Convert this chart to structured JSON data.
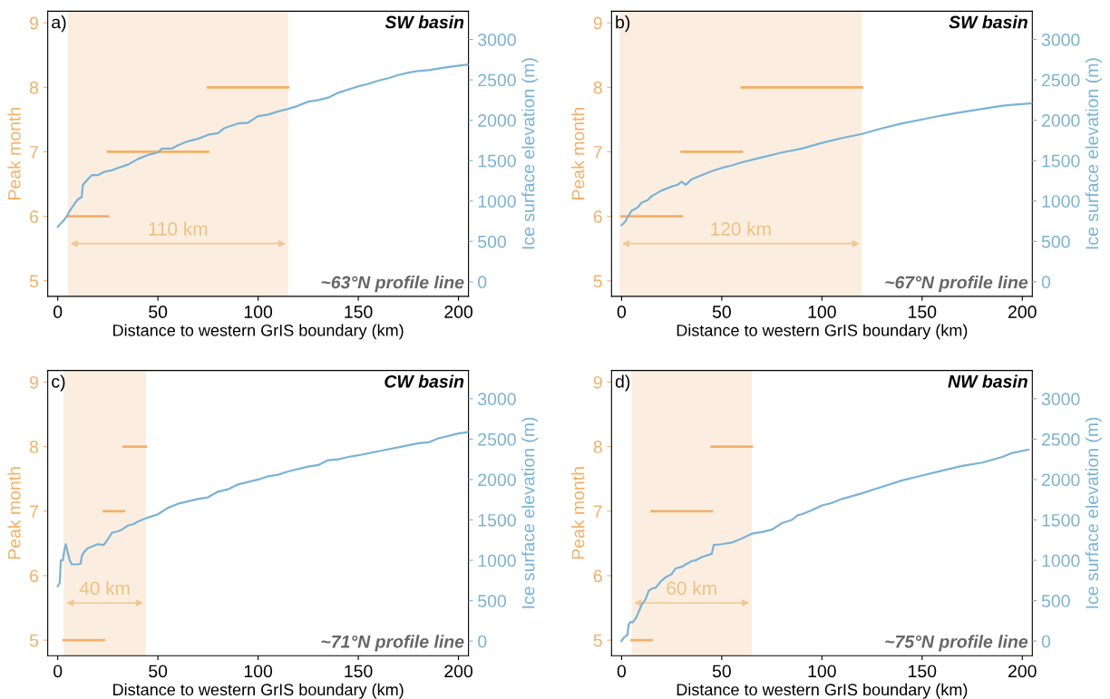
{
  "chart_data": [
    {
      "type": "line",
      "title": "SW basin",
      "xlabel": "Distance to western GrIS boundary (km)",
      "ylabel": "Peak month",
      "y2label": "Ice surface elevation (m)",
      "xlim": [
        -5,
        205
      ],
      "xticks": [
        0,
        50,
        100,
        150,
        200
      ],
      "ylim": [
        4.76,
        9.18
      ],
      "yticks": [
        5,
        6,
        7,
        8,
        9
      ],
      "y2lim": [
        -180,
        3350
      ],
      "y2ticks": [
        0,
        500,
        1000,
        1500,
        2000,
        2500,
        3000
      ],
      "grid": false,
      "legend": false,
      "bands": [
        {
          "axis": "x",
          "from": 5,
          "to": 115,
          "color": "#fbeee0"
        }
      ],
      "annotations": [
        "a)",
        "~63°N profile line",
        "110 km"
      ],
      "series": [
        {
          "color": "#f5b066",
          "x": [
            5,
            25
          ],
          "values": [
            6,
            6
          ]
        },
        {
          "color": "#f5b066",
          "x": [
            25,
            75
          ],
          "values": [
            7,
            7
          ]
        },
        {
          "color": "#f5b066",
          "x": [
            75,
            115
          ],
          "values": [
            8,
            8
          ]
        },
        {
          "color": "#7ab3d6",
          "axis": "y2",
          "x": [
            0,
            3,
            5,
            6,
            8,
            10,
            12,
            12.5,
            15,
            17,
            20,
            23,
            27,
            30,
            35,
            40,
            45,
            50,
            52,
            57,
            60,
            65,
            70,
            75,
            80,
            83,
            90,
            95,
            100,
            105,
            110,
            115,
            120,
            125,
            130,
            135,
            140,
            145,
            150,
            155,
            160,
            165,
            170,
            175,
            180,
            185,
            190,
            195,
            205
          ],
          "values": [
            680,
            760,
            830,
            880,
            950,
            1020,
            1050,
            1200,
            1270,
            1320,
            1320,
            1360,
            1380,
            1410,
            1450,
            1520,
            1570,
            1600,
            1650,
            1650,
            1690,
            1740,
            1770,
            1820,
            1840,
            1900,
            1960,
            1970,
            2050,
            2070,
            2110,
            2140,
            2180,
            2230,
            2250,
            2280,
            2340,
            2380,
            2420,
            2450,
            2490,
            2520,
            2560,
            2590,
            2610,
            2620,
            2640,
            2660,
            2690
          ]
        }
      ]
    },
    {
      "type": "line",
      "title": "SW basin",
      "xlabel": "Distance to western GrIS boundary (km)",
      "ylabel": "Peak month",
      "y2label": "Ice surface elevation (m)",
      "xlim": [
        -5,
        205
      ],
      "xticks": [
        0,
        50,
        100,
        150,
        200
      ],
      "ylim": [
        4.76,
        9.18
      ],
      "yticks": [
        5,
        6,
        7,
        8,
        9
      ],
      "y2lim": [
        -180,
        3350
      ],
      "y2ticks": [
        0,
        500,
        1000,
        1500,
        2000,
        2500,
        3000
      ],
      "grid": false,
      "legend": false,
      "bands": [
        {
          "axis": "x",
          "from": -1,
          "to": 120,
          "color": "#fbeee0"
        }
      ],
      "annotations": [
        "b)",
        "~67°N profile line",
        "120 km"
      ],
      "series": [
        {
          "color": "#f5b066",
          "x": [
            0,
            30
          ],
          "values": [
            6,
            6
          ]
        },
        {
          "color": "#f5b066",
          "x": [
            30,
            60
          ],
          "values": [
            7,
            7
          ]
        },
        {
          "color": "#f5b066",
          "x": [
            60,
            120
          ],
          "values": [
            8,
            8
          ]
        },
        {
          "color": "#7ab3d6",
          "axis": "y2",
          "x": [
            0,
            2,
            3,
            5,
            8,
            10,
            13,
            15,
            20,
            25,
            28,
            30,
            32,
            35,
            40,
            45,
            50,
            55,
            60,
            70,
            80,
            90,
            100,
            110,
            120,
            130,
            140,
            150,
            160,
            170,
            180,
            190,
            195,
            205
          ],
          "values": [
            700,
            750,
            800,
            880,
            920,
            980,
            1010,
            1060,
            1130,
            1180,
            1200,
            1240,
            1200,
            1270,
            1320,
            1370,
            1410,
            1440,
            1480,
            1540,
            1600,
            1650,
            1720,
            1780,
            1830,
            1900,
            1960,
            2010,
            2060,
            2100,
            2140,
            2180,
            2190,
            2210
          ]
        }
      ]
    },
    {
      "type": "line",
      "title": "CW basin",
      "xlabel": "Distance to western GrIS boundary (km)",
      "ylabel": "Peak month",
      "y2label": "Ice surface elevation (m)",
      "xlim": [
        -5,
        205
      ],
      "xticks": [
        0,
        50,
        100,
        150,
        200
      ],
      "ylim": [
        4.76,
        9.18
      ],
      "yticks": [
        5,
        6,
        7,
        8,
        9
      ],
      "y2lim": [
        -180,
        3350
      ],
      "y2ticks": [
        0,
        500,
        1000,
        1500,
        2000,
        2500,
        3000
      ],
      "grid": false,
      "legend": false,
      "bands": [
        {
          "axis": "x",
          "from": 3,
          "to": 44,
          "color": "#fbeee0"
        }
      ],
      "annotations": [
        "c)",
        "~71°N profile line",
        "40 km"
      ],
      "series": [
        {
          "color": "#f5b066",
          "x": [
            3,
            23
          ],
          "values": [
            5,
            5
          ]
        },
        {
          "color": "#f5b066",
          "x": [
            23,
            33
          ],
          "values": [
            7,
            7
          ]
        },
        {
          "color": "#f5b066",
          "x": [
            33,
            44
          ],
          "values": [
            8,
            8
          ]
        },
        {
          "color": "#7ab3d6",
          "axis": "y2",
          "x": [
            0,
            1,
            1.5,
            2.5,
            3.5,
            4,
            5,
            6,
            7,
            10,
            11.5,
            12,
            13,
            15,
            18,
            20,
            23,
            25,
            27,
            30,
            32,
            35,
            38,
            40,
            45,
            50,
            55,
            60,
            70,
            75,
            80,
            85,
            90,
            100,
            105,
            110,
            115,
            125,
            130,
            135,
            140,
            145,
            150,
            160,
            170,
            180,
            185,
            190,
            200,
            205
          ],
          "values": [
            680,
            720,
            1000,
            1000,
            1150,
            1200,
            1100,
            1000,
            950,
            950,
            960,
            1050,
            1100,
            1150,
            1180,
            1200,
            1190,
            1260,
            1340,
            1360,
            1380,
            1430,
            1450,
            1480,
            1530,
            1570,
            1650,
            1700,
            1760,
            1780,
            1850,
            1880,
            1940,
            2000,
            2040,
            2060,
            2100,
            2160,
            2180,
            2240,
            2250,
            2280,
            2300,
            2350,
            2400,
            2450,
            2460,
            2510,
            2570,
            2590
          ]
        }
      ]
    },
    {
      "type": "line",
      "title": "NW basin",
      "xlabel": "Distance to western GrIS boundary (km)",
      "ylabel": "Peak month",
      "y2label": "Ice surface elevation (m)",
      "xlim": [
        -5,
        205
      ],
      "xticks": [
        0,
        50,
        100,
        150,
        200
      ],
      "ylim": [
        4.76,
        9.18
      ],
      "yticks": [
        5,
        6,
        7,
        8,
        9
      ],
      "y2lim": [
        -180,
        3350
      ],
      "y2ticks": [
        0,
        500,
        1000,
        1500,
        2000,
        2500,
        3000
      ],
      "grid": false,
      "legend": false,
      "bands": [
        {
          "axis": "x",
          "from": 5,
          "to": 65,
          "color": "#fbeee0"
        }
      ],
      "annotations": [
        "d)",
        "~75°N profile line",
        "60 km"
      ],
      "series": [
        {
          "color": "#f5b066",
          "x": [
            5,
            15
          ],
          "values": [
            5,
            5
          ]
        },
        {
          "color": "#f5b066",
          "x": [
            15,
            45
          ],
          "values": [
            7,
            7
          ]
        },
        {
          "color": "#f5b066",
          "x": [
            45,
            65
          ],
          "values": [
            8,
            8
          ]
        },
        {
          "color": "#7ab3d6",
          "axis": "y2",
          "x": [
            0,
            1,
            2,
            3,
            3.5,
            4.5,
            5.5,
            7,
            8,
            10,
            12,
            13.5,
            15,
            17,
            19,
            20,
            22,
            25,
            27,
            30,
            32,
            35,
            37,
            40,
            45,
            46,
            50,
            55,
            60,
            65,
            70,
            75,
            80,
            85,
            88,
            90,
            95,
            100,
            105,
            110,
            120,
            125,
            130,
            140,
            150,
            160,
            170,
            180,
            190,
            195,
            203
          ],
          "values": [
            0,
            40,
            60,
            80,
            200,
            240,
            230,
            280,
            330,
            450,
            520,
            620,
            650,
            660,
            720,
            750,
            790,
            830,
            900,
            920,
            950,
            990,
            1000,
            1040,
            1080,
            1190,
            1200,
            1220,
            1270,
            1330,
            1350,
            1380,
            1460,
            1500,
            1560,
            1570,
            1620,
            1680,
            1710,
            1760,
            1830,
            1870,
            1910,
            1990,
            2050,
            2110,
            2170,
            2210,
            2280,
            2330,
            2370
          ]
        }
      ]
    }
  ]
}
